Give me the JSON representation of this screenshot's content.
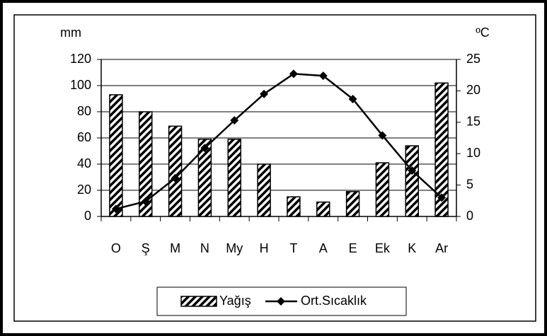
{
  "chart_data": {
    "type": "bar",
    "categories": [
      "O",
      "Ş",
      "M",
      "N",
      "My",
      "H",
      "T",
      "A",
      "E",
      "Ek",
      "K",
      "Ar"
    ],
    "series": [
      {
        "name": "Yağış",
        "type": "bar",
        "color": "#000000",
        "values": [
          93,
          80,
          69,
          59,
          59,
          40,
          15,
          11,
          19,
          41,
          54,
          102
        ]
      },
      {
        "name": "Ort.Sıcaklık",
        "type": "line",
        "axis": "y2",
        "color": "#000000",
        "values": [
          1.2,
          2.4,
          6.1,
          10.9,
          15.3,
          19.5,
          22.7,
          22.4,
          18.7,
          12.9,
          7.3,
          3.0
        ]
      }
    ],
    "ylabel": "mm",
    "y2label": "ºC",
    "ylim": [
      0,
      120
    ],
    "yticks": [
      0,
      20,
      40,
      60,
      80,
      100,
      120
    ],
    "y2lim": [
      0,
      25
    ],
    "y2ticks": [
      0,
      5,
      10,
      15,
      20,
      25
    ],
    "grid": true,
    "legend": "bottom"
  }
}
